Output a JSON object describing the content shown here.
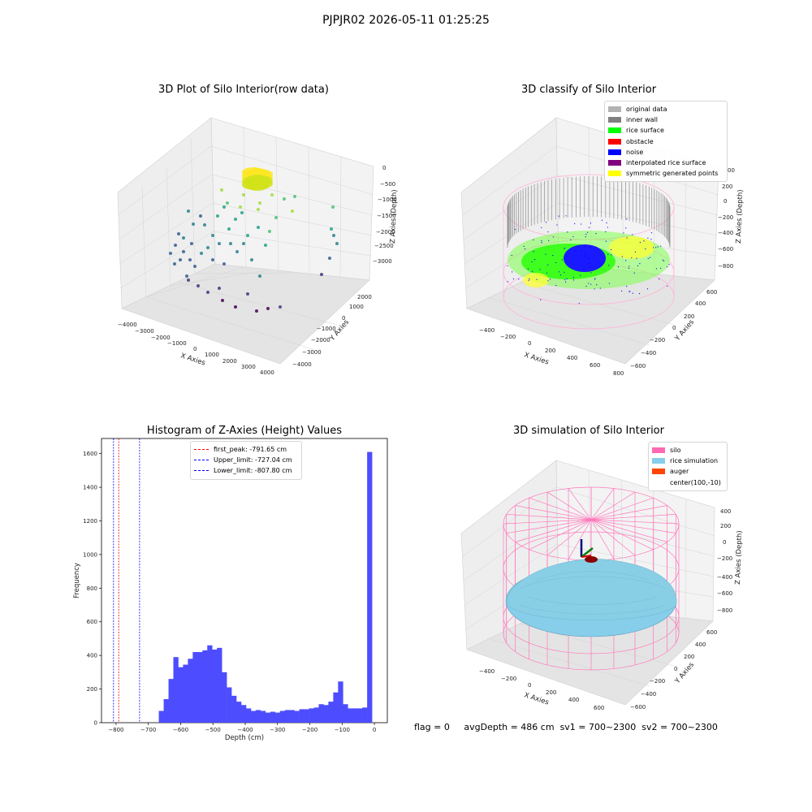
{
  "suptitle": "PJPJR02 2026-05-11 01:25:25",
  "panels": {
    "raw": {
      "title": "3D Plot of Silo Interior(row data)",
      "xlabel": "X Axies",
      "ylabel": "Y Axies",
      "zlabel": "Z Axies (Depth)",
      "xticks": [
        "−4000",
        "−3000",
        "−2000",
        "−1000",
        "0",
        "1000",
        "2000",
        "3000",
        "4000"
      ],
      "yticks": [
        "−4000",
        "−3000",
        "−2000",
        "−1000",
        "0",
        "1000",
        "2000"
      ],
      "zticks": [
        "0",
        "−500",
        "−1000",
        "−1500",
        "−2000",
        "−2500",
        "−3000"
      ]
    },
    "classify": {
      "title": "3D classify of Silo Interior",
      "xlabel": "X Axies",
      "ylabel": "Y Axies",
      "zlabel": "Z Axies (Depth)",
      "xticks": [
        "−400",
        "−200",
        "0",
        "200",
        "400",
        "600",
        "800"
      ],
      "yticks": [
        "−600",
        "−400",
        "−200",
        "0",
        "200",
        "400",
        "600"
      ],
      "zticks": [
        "200",
        "0",
        "−200",
        "−400",
        "−600",
        "−800"
      ],
      "ztick_top_partial": "00",
      "legend": [
        {
          "label": "original data",
          "color": "#b3b3b3"
        },
        {
          "label": "inner wall",
          "color": "#808080"
        },
        {
          "label": "rice surface",
          "color": "#00ff00"
        },
        {
          "label": "obstacle",
          "color": "#ff0000"
        },
        {
          "label": "noise",
          "color": "#0000ff"
        },
        {
          "label": "interpolated rice surface",
          "color": "#800080"
        },
        {
          "label": "symmetric generated points",
          "color": "#ffff00"
        }
      ]
    },
    "histogram": {
      "title": "Histogram of Z-Axies (Height) Values",
      "xlabel": "Depth (cm)",
      "ylabel": "Frequency",
      "legend": [
        {
          "label": "first_peak: -791.65 cm",
          "color": "#ff0000"
        },
        {
          "label": "Upper_limit: -727.04 cm",
          "color": "#0000ff"
        },
        {
          "label": "Lower_limit: -807.80 cm",
          "color": "#0000ff"
        }
      ]
    },
    "simulation": {
      "title": "3D simulation of Silo Interior",
      "xlabel": "X Axies",
      "ylabel": "Y Axies",
      "zlabel": "Z Axies (Depth)",
      "xticks": [
        "−400",
        "−200",
        "0",
        "200",
        "400",
        "600"
      ],
      "yticks": [
        "−600",
        "−400",
        "−200",
        "0",
        "200",
        "400",
        "600"
      ],
      "zticks": [
        "400",
        "200",
        "0",
        "−200",
        "−400",
        "−600",
        "−800"
      ],
      "legend": [
        {
          "label": "silo",
          "color": "#ff69b4"
        },
        {
          "label": "rice simulation",
          "color": "#87ceeb"
        },
        {
          "label": "auger",
          "color": "#ff4500"
        },
        {
          "label": "center(100,-10)",
          "color": "#ffffff"
        }
      ]
    }
  },
  "status": {
    "flag": "flag = 0",
    "avg": "avgDepth = 486 cm",
    "sv1": "sv1 = 700~2300",
    "sv2": "sv2 = 700~2300"
  },
  "chart_data": [
    {
      "type": "scatter",
      "title": "3D Plot of Silo Interior(row data)",
      "xlabel": "X Axies",
      "ylabel": "Y Axies",
      "zlabel": "Z Axies (Depth)",
      "xlim": [
        -4000,
        4000
      ],
      "ylim": [
        -4000,
        2000
      ],
      "zlim": [
        -3300,
        0
      ],
      "colormap": "viridis",
      "points": [
        {
          "x": 300,
          "y": 300,
          "z": -300
        },
        {
          "x": 400,
          "y": 400,
          "z": -400
        },
        {
          "x": 200,
          "y": 200,
          "z": -350
        },
        {
          "x": -200,
          "y": 200,
          "z": -1500
        },
        {
          "x": 0,
          "y": 500,
          "z": -1400
        },
        {
          "x": -600,
          "y": -200,
          "z": -1700
        },
        {
          "x": -1000,
          "y": 0,
          "z": -1800
        },
        {
          "x": -1500,
          "y": -500,
          "z": -2000
        },
        {
          "x": -2500,
          "y": -1000,
          "z": -2300
        },
        {
          "x": -3000,
          "y": -1500,
          "z": -2600
        },
        {
          "x": -2000,
          "y": -2500,
          "z": -2900
        },
        {
          "x": 500,
          "y": -2000,
          "z": -3100
        },
        {
          "x": 1500,
          "y": -1500,
          "z": -3200
        },
        {
          "x": 3000,
          "y": 1500,
          "z": -2500
        },
        {
          "x": 2500,
          "y": 1000,
          "z": -1900
        }
      ]
    },
    {
      "type": "scatter",
      "title": "3D classify of Silo Interior",
      "xlim": [
        -500,
        800
      ],
      "ylim": [
        -650,
        650
      ],
      "zlim": [
        -900,
        300
      ],
      "series": [
        {
          "name": "original data"
        },
        {
          "name": "inner wall"
        },
        {
          "name": "rice surface"
        },
        {
          "name": "obstacle"
        },
        {
          "name": "noise"
        },
        {
          "name": "interpolated rice surface"
        },
        {
          "name": "symmetric generated points"
        }
      ]
    },
    {
      "type": "bar",
      "title": "Histogram of Z-Axies (Height) Values",
      "xlabel": "Depth (cm)",
      "ylabel": "Frequency",
      "xlim": [
        -845,
        40
      ],
      "ylim": [
        0,
        1690
      ],
      "xticks": [
        -800,
        -700,
        -600,
        -500,
        -400,
        -300,
        -200,
        -100,
        0
      ],
      "yticks": [
        0,
        200,
        400,
        600,
        800,
        1000,
        1200,
        1400,
        1600
      ],
      "bar_color": "#4d4dff",
      "bins": [
        {
          "x": -660,
          "value": 70
        },
        {
          "x": -645,
          "value": 140
        },
        {
          "x": -630,
          "value": 260
        },
        {
          "x": -615,
          "value": 390
        },
        {
          "x": -600,
          "value": 330
        },
        {
          "x": -585,
          "value": 345
        },
        {
          "x": -570,
          "value": 380
        },
        {
          "x": -555,
          "value": 420
        },
        {
          "x": -540,
          "value": 420
        },
        {
          "x": -525,
          "value": 430
        },
        {
          "x": -510,
          "value": 460
        },
        {
          "x": -495,
          "value": 435
        },
        {
          "x": -480,
          "value": 445
        },
        {
          "x": -465,
          "value": 300
        },
        {
          "x": -450,
          "value": 210
        },
        {
          "x": -435,
          "value": 160
        },
        {
          "x": -420,
          "value": 125
        },
        {
          "x": -405,
          "value": 105
        },
        {
          "x": -390,
          "value": 85
        },
        {
          "x": -375,
          "value": 70
        },
        {
          "x": -360,
          "value": 75
        },
        {
          "x": -345,
          "value": 70
        },
        {
          "x": -330,
          "value": 60
        },
        {
          "x": -315,
          "value": 65
        },
        {
          "x": -300,
          "value": 60
        },
        {
          "x": -285,
          "value": 70
        },
        {
          "x": -270,
          "value": 75
        },
        {
          "x": -255,
          "value": 75
        },
        {
          "x": -240,
          "value": 70
        },
        {
          "x": -225,
          "value": 80
        },
        {
          "x": -210,
          "value": 80
        },
        {
          "x": -195,
          "value": 85
        },
        {
          "x": -180,
          "value": 90
        },
        {
          "x": -165,
          "value": 110
        },
        {
          "x": -150,
          "value": 105
        },
        {
          "x": -135,
          "value": 125
        },
        {
          "x": -120,
          "value": 180
        },
        {
          "x": -105,
          "value": 245
        },
        {
          "x": -90,
          "value": 110
        },
        {
          "x": -75,
          "value": 85
        },
        {
          "x": -60,
          "value": 85
        },
        {
          "x": -45,
          "value": 85
        },
        {
          "x": -30,
          "value": 90
        },
        {
          "x": -15,
          "value": 1610
        }
      ],
      "bin_width": 15,
      "vlines": [
        {
          "label": "first_peak: -791.65 cm",
          "x": -791.65,
          "color": "#ff0000"
        },
        {
          "label": "Upper_limit: -727.04 cm",
          "x": -727.04,
          "color": "#0000ff"
        },
        {
          "label": "Lower_limit: -807.80 cm",
          "x": -807.8,
          "color": "#0000ff"
        }
      ]
    },
    {
      "type": "scatter",
      "title": "3D simulation of Silo Interior",
      "xlim": [
        -500,
        700
      ],
      "ylim": [
        -650,
        650
      ],
      "zlim": [
        -900,
        450
      ],
      "series": [
        {
          "name": "silo"
        },
        {
          "name": "rice simulation"
        },
        {
          "name": "auger"
        },
        {
          "name": "center(100,-10)"
        }
      ]
    }
  ]
}
